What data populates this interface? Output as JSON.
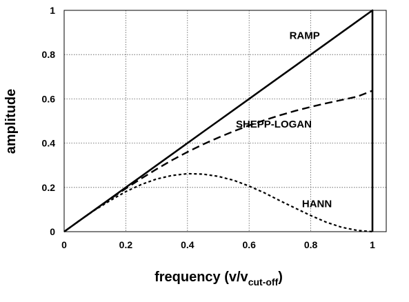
{
  "chart_data": {
    "type": "line",
    "title": "",
    "xlabel": "frequency (v/v",
    "xlabel_sub": "cut-off",
    "xlabel_end": ")",
    "ylabel": "amplitude",
    "xlim": [
      0,
      1
    ],
    "ylim": [
      0,
      1
    ],
    "grid": true,
    "x_ticks": [
      {
        "value": 0,
        "label": "0"
      },
      {
        "value": 0.2,
        "label": "0.2"
      },
      {
        "value": 0.4,
        "label": "0.4"
      },
      {
        "value": 0.6,
        "label": "0.6"
      },
      {
        "value": 0.8,
        "label": "0.8"
      },
      {
        "value": 1,
        "label": "1"
      }
    ],
    "y_ticks": [
      {
        "value": 0,
        "label": "0"
      },
      {
        "value": 0.2,
        "label": "0.2"
      },
      {
        "value": 0.4,
        "label": "0.4"
      },
      {
        "value": 0.6,
        "label": "0.6"
      },
      {
        "value": 0.8,
        "label": "0.8"
      },
      {
        "value": 1,
        "label": "1"
      }
    ],
    "x": [
      0,
      0.05,
      0.1,
      0.15,
      0.2,
      0.25,
      0.3,
      0.35,
      0.4,
      0.45,
      0.5,
      0.55,
      0.6,
      0.65,
      0.7,
      0.75,
      0.8,
      0.85,
      0.9,
      0.95,
      1
    ],
    "series": [
      {
        "name": "RAMP",
        "style": "solid",
        "values": [
          0,
          0.05,
          0.1,
          0.15,
          0.2,
          0.25,
          0.3,
          0.35,
          0.4,
          0.45,
          0.5,
          0.55,
          0.6,
          0.65,
          0.7,
          0.75,
          0.8,
          0.85,
          0.9,
          0.95,
          1
        ],
        "drop_to_zero_at": 1
      },
      {
        "name": "SHEPP-LOGAN",
        "style": "dashed",
        "values": [
          0,
          0.05,
          0.099,
          0.148,
          0.195,
          0.24,
          0.283,
          0.323,
          0.36,
          0.394,
          0.425,
          0.454,
          0.48,
          0.504,
          0.526,
          0.546,
          0.564,
          0.58,
          0.595,
          0.61,
          0.637
        ]
      },
      {
        "name": "HANN",
        "style": "dotted",
        "values": [
          0,
          0.05,
          0.098,
          0.141,
          0.181,
          0.213,
          0.238,
          0.254,
          0.262,
          0.26,
          0.25,
          0.232,
          0.206,
          0.175,
          0.14,
          0.106,
          0.073,
          0.043,
          0.02,
          0.006,
          0
        ]
      }
    ],
    "labels": [
      {
        "text": "RAMP",
        "x": 0.78,
        "y": 0.87
      },
      {
        "text": "SHEPP-LOGAN",
        "x": 0.68,
        "y": 0.47
      },
      {
        "text": "HANN",
        "x": 0.82,
        "y": 0.11
      }
    ]
  }
}
